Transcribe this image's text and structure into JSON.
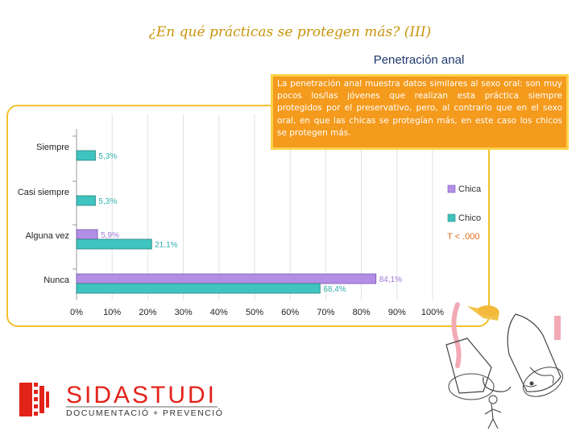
{
  "slide": {
    "title": "¿En qué prácticas se protegen más? (III)",
    "callout": "La penetración anal muestra datos similares al sexo oral: son muy pocos los/las jóvenes que realizan esta práctica siempre protegidos por el preservativo, pero, al contrario que en el sexo oral, en que las chicas se protegían más, en este caso los chicos se protegen más.",
    "logo": {
      "name": "SIDASTUDI",
      "tagline": "DOCUMENTACIÓ + PREVENCIÓ",
      "color": "#e2231a"
    }
  },
  "chart_data": {
    "type": "bar",
    "orientation": "horizontal",
    "title": "Penetración anal",
    "categories": [
      "Siempre",
      "Casi siempre",
      "Alguna vez",
      "Nunca"
    ],
    "series": [
      {
        "name": "Chica",
        "color": "#b38ee6",
        "values": [
          null,
          null,
          5.9,
          84.1
        ],
        "labels": [
          "",
          "",
          "5,9%",
          "84,1%"
        ]
      },
      {
        "name": "Chico",
        "color": "#3fc4c0",
        "values": [
          5.3,
          5.3,
          21.1,
          68.4
        ],
        "labels": [
          "5,3%",
          "5,3%",
          "21,1%",
          "68,4%"
        ]
      }
    ],
    "x_ticks": [
      "0%",
      "10%",
      "20%",
      "30%",
      "40%",
      "50%",
      "60%",
      "70%",
      "80%",
      "90%",
      "100%"
    ],
    "xlim": [
      0,
      100
    ],
    "grid": true,
    "legend_position": "right",
    "annotation": "T < .000"
  }
}
